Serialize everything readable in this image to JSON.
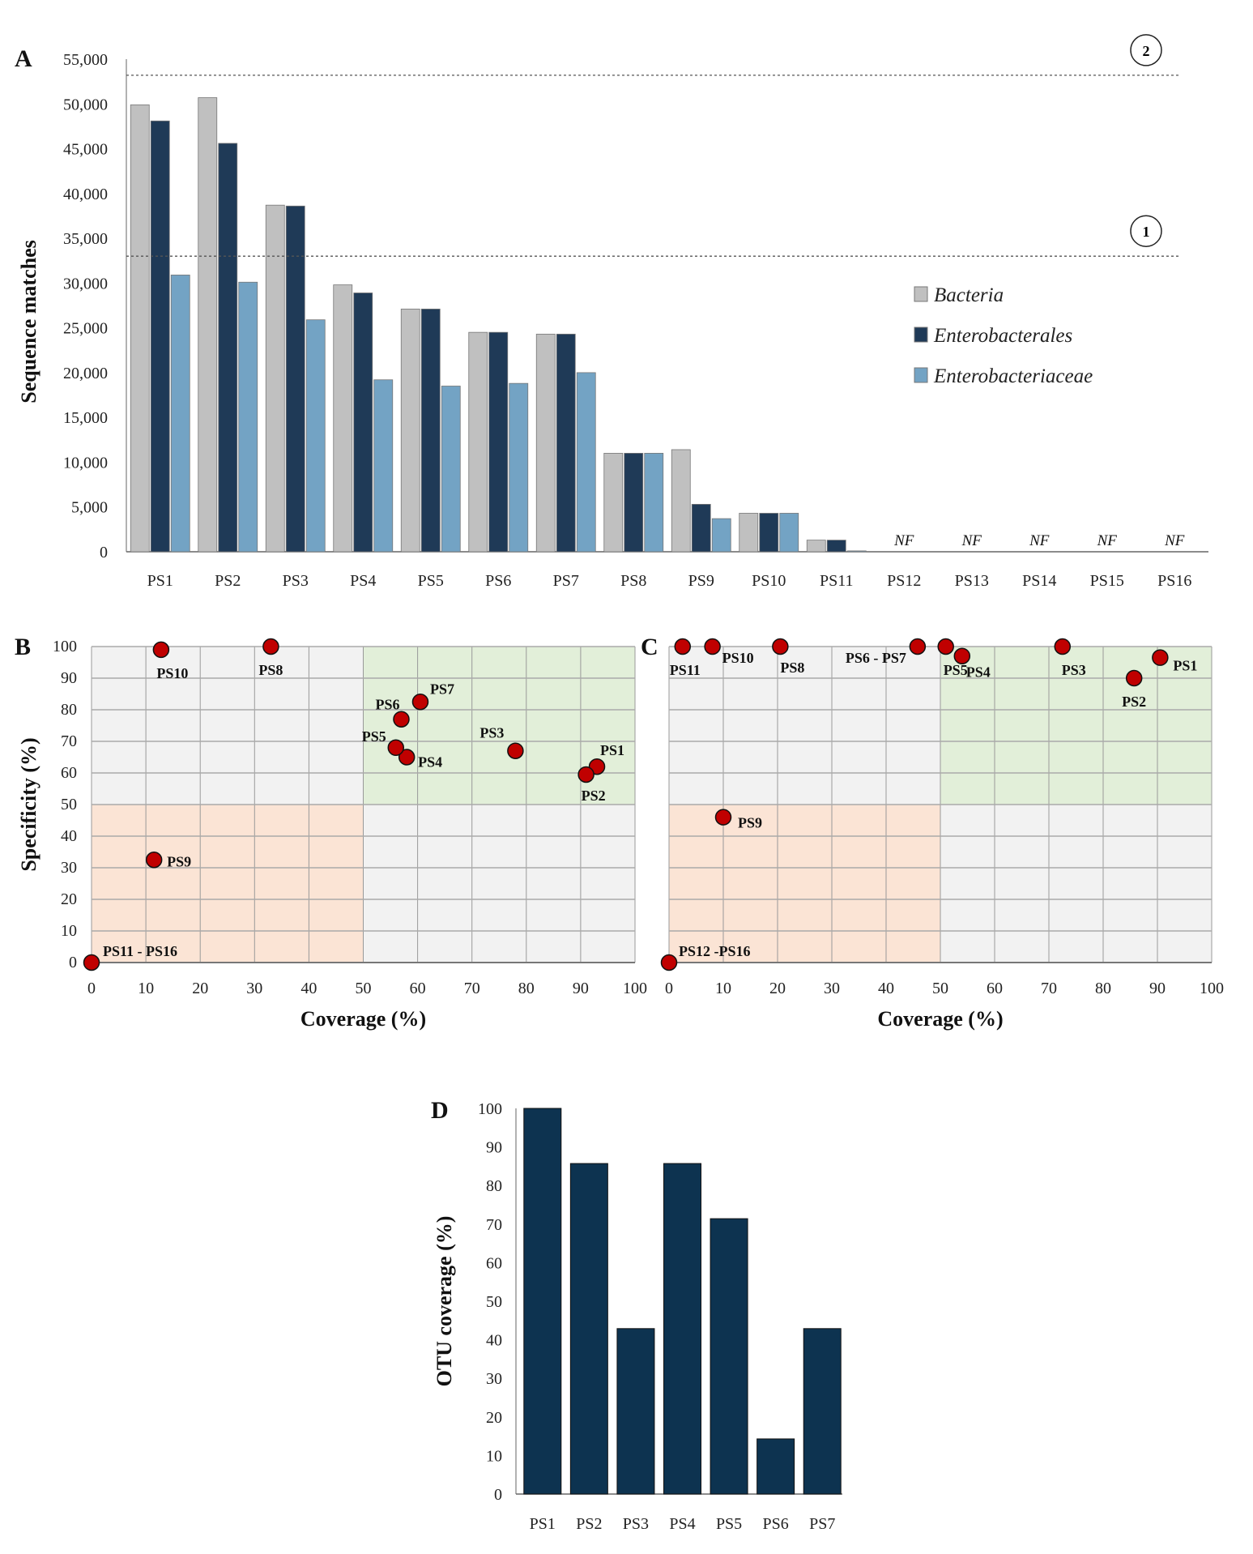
{
  "chart_data": [
    {
      "panel": "A",
      "type": "bar",
      "ylabel": "Sequence matches",
      "xlabel": "",
      "categories": [
        "PS1",
        "PS2",
        "PS3",
        "PS4",
        "PS5",
        "PS6",
        "PS7",
        "PS8",
        "PS9",
        "PS10",
        "PS11",
        "PS12",
        "PS13",
        "PS14",
        "PS15",
        "PS16"
      ],
      "ylim": [
        0,
        55000
      ],
      "yticks": [
        0,
        5000,
        10000,
        15000,
        20000,
        25000,
        30000,
        35000,
        40000,
        45000,
        50000,
        55000
      ],
      "ytick_labels": [
        "0",
        "5,000",
        "10,000",
        "15,000",
        "20,000",
        "25,000",
        "30,000",
        "35,000",
        "40,000",
        "45,000",
        "50,000",
        "55,000"
      ],
      "series": [
        {
          "name": "Bacteria",
          "color": "#c0c0c0",
          "values": [
            49900,
            50700,
            38700,
            29800,
            27100,
            24500,
            24300,
            11000,
            11400,
            4300,
            1300,
            null,
            null,
            null,
            null,
            null
          ]
        },
        {
          "name": "Enterobacterales",
          "color": "#1f3a57",
          "values": [
            48100,
            45600,
            38600,
            28900,
            27100,
            24500,
            24300,
            11000,
            5300,
            4300,
            1300,
            null,
            null,
            null,
            null,
            null
          ]
        },
        {
          "name": "Enterobacteriaceae",
          "color": "#73a3c4",
          "values": [
            30900,
            30100,
            25900,
            19200,
            18500,
            18800,
            20000,
            11000,
            3700,
            4300,
            100,
            null,
            null,
            null,
            null,
            null
          ]
        }
      ],
      "missing_label": "NF",
      "reference_lines": [
        {
          "label": "1",
          "value": 33000
        },
        {
          "label": "2",
          "value": 53200
        }
      ],
      "legend": "right"
    },
    {
      "panel": "B",
      "type": "scatter",
      "xlabel": "Coverage (%)",
      "ylabel": "Specificity (%)",
      "xlim": [
        0,
        100
      ],
      "ylim": [
        0,
        100
      ],
      "xticks": [
        0,
        10,
        20,
        30,
        40,
        50,
        60,
        70,
        80,
        90,
        100
      ],
      "yticks": [
        0,
        10,
        20,
        30,
        40,
        50,
        60,
        70,
        80,
        90,
        100
      ],
      "points": [
        {
          "label": "PS1",
          "x": 93,
          "y": 62
        },
        {
          "label": "PS2",
          "x": 91,
          "y": 59.5
        },
        {
          "label": "PS3",
          "x": 78,
          "y": 67
        },
        {
          "label": "PS4",
          "x": 58,
          "y": 65
        },
        {
          "label": "PS5",
          "x": 56,
          "y": 68
        },
        {
          "label": "PS6",
          "x": 57,
          "y": 77
        },
        {
          "label": "PS7",
          "x": 60.5,
          "y": 82.5
        },
        {
          "label": "PS8",
          "x": 33,
          "y": 100
        },
        {
          "label": "PS9",
          "x": 11.5,
          "y": 32.5
        },
        {
          "label": "PS10",
          "x": 12.8,
          "y": 99
        },
        {
          "label": "PS11 - PS16",
          "x": 0,
          "y": 0
        }
      ]
    },
    {
      "panel": "C",
      "type": "scatter",
      "xlabel": "Coverage (%)",
      "ylabel": "Specificity (%)",
      "xlim": [
        0,
        100
      ],
      "ylim": [
        0,
        100
      ],
      "xticks": [
        0,
        10,
        20,
        30,
        40,
        50,
        60,
        70,
        80,
        90,
        100
      ],
      "yticks": [
        0,
        10,
        20,
        30,
        40,
        50,
        60,
        70,
        80,
        90,
        100
      ],
      "points": [
        {
          "label": "PS1",
          "x": 90.5,
          "y": 96.5
        },
        {
          "label": "PS2",
          "x": 85.7,
          "y": 90
        },
        {
          "label": "PS3",
          "x": 72.5,
          "y": 100
        },
        {
          "label": "PS4",
          "x": 54,
          "y": 97
        },
        {
          "label": "PS5",
          "x": 51,
          "y": 100
        },
        {
          "label": "PS6 - PS7",
          "x": 45.8,
          "y": 100
        },
        {
          "label": "PS8",
          "x": 20.5,
          "y": 100
        },
        {
          "label": "PS9",
          "x": 10,
          "y": 46
        },
        {
          "label": "PS10",
          "x": 8,
          "y": 100
        },
        {
          "label": "PS11",
          "x": 2.5,
          "y": 100
        },
        {
          "label": "PS12 -PS16",
          "x": 0,
          "y": 0
        }
      ]
    },
    {
      "panel": "D",
      "type": "bar",
      "ylabel": "OTU coverage (%)",
      "xlabel": "",
      "categories": [
        "PS1",
        "PS2",
        "PS3",
        "PS4",
        "PS5",
        "PS6",
        "PS7"
      ],
      "values": [
        100,
        85.7,
        42.9,
        85.7,
        71.4,
        14.3,
        42.9
      ],
      "color": "#0d3350",
      "ylim": [
        0,
        100
      ],
      "yticks": [
        0,
        10,
        20,
        30,
        40,
        50,
        60,
        70,
        80,
        90,
        100
      ]
    }
  ],
  "colors": {
    "green_zone": "#e2efd9",
    "orange_zone": "#fbe4d5",
    "grey_zone": "#f2f2f2",
    "point": "#c00000"
  }
}
